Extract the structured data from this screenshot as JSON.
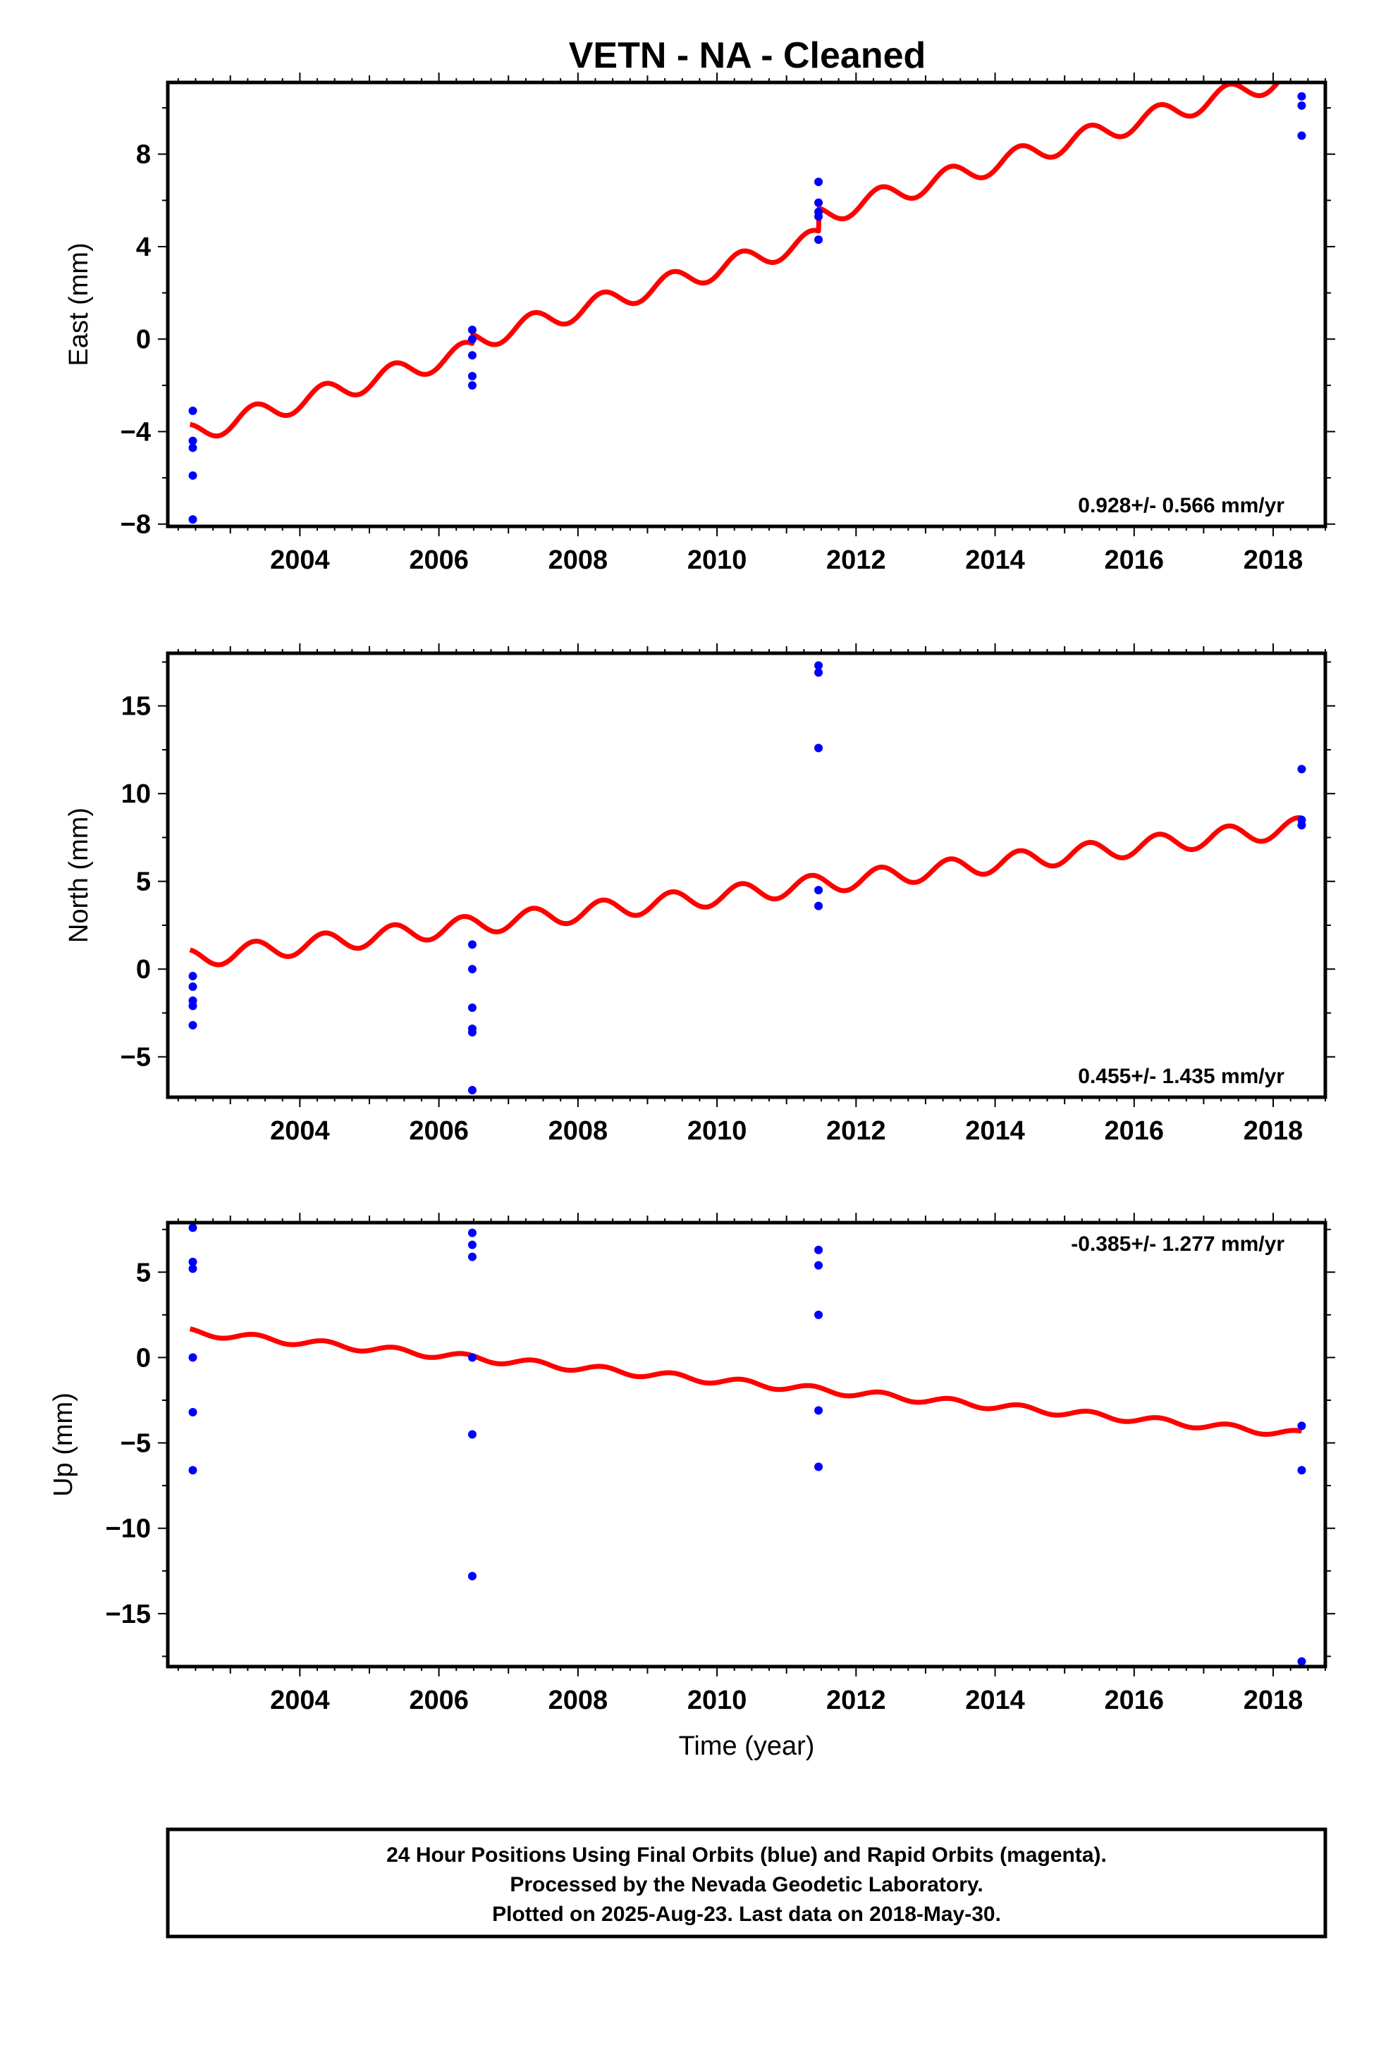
{
  "title": "VETN  - NA - Cleaned",
  "xlabel": "Time (year)",
  "footer_lines": [
    "24 Hour Positions Using Final Orbits (blue) and Rapid Orbits (magenta).",
    "Processed by the Nevada Geodetic Laboratory.",
    "Plotted on 2025-Aug-23. Last data on 2018-May-30."
  ],
  "colors": {
    "data_points": "#0000ff",
    "model_curve": "#ff0000",
    "frame": "#000000"
  },
  "chart_data": [
    {
      "type": "scatter",
      "ylabel": "East (mm)",
      "rate_label": "0.928+/- 0.566 mm/yr",
      "xlim": [
        2002.1,
        2018.75
      ],
      "ylim": [
        -8.1,
        11.1
      ],
      "xticks": [
        2004,
        2006,
        2008,
        2010,
        2012,
        2014,
        2016,
        2018
      ],
      "yticks": [
        -8,
        -4,
        0,
        4,
        8
      ],
      "points": [
        {
          "x": 2002.46,
          "y": -3.1
        },
        {
          "x": 2002.46,
          "y": -4.4
        },
        {
          "x": 2002.46,
          "y": -4.7
        },
        {
          "x": 2002.46,
          "y": -5.9
        },
        {
          "x": 2002.46,
          "y": -7.8
        },
        {
          "x": 2006.48,
          "y": 0.4
        },
        {
          "x": 2006.48,
          "y": 0.0
        },
        {
          "x": 2006.48,
          "y": -0.7
        },
        {
          "x": 2006.48,
          "y": -1.6
        },
        {
          "x": 2006.48,
          "y": -2.0
        },
        {
          "x": 2011.46,
          "y": 6.8
        },
        {
          "x": 2011.46,
          "y": 5.9
        },
        {
          "x": 2011.46,
          "y": 5.5
        },
        {
          "x": 2011.46,
          "y": 5.3
        },
        {
          "x": 2011.46,
          "y": 4.3
        },
        {
          "x": 2018.41,
          "y": 10.5
        },
        {
          "x": 2018.41,
          "y": 10.1
        },
        {
          "x": 2018.41,
          "y": 8.8
        }
      ],
      "model": {
        "x_start": 2002.42,
        "x_end": 2018.41,
        "y_start": -4.1,
        "y_end": 10.1,
        "seasonal_amplitude": 0.45,
        "annual_phase": 0.1,
        "offsets": [
          {
            "year": 2006.48,
            "value": 0.4
          },
          {
            "year": 2011.46,
            "value": 1.0
          }
        ]
      }
    },
    {
      "type": "scatter",
      "ylabel": "North (mm)",
      "rate_label": "0.455+/- 1.435 mm/yr",
      "xlim": [
        2002.1,
        2018.75
      ],
      "ylim": [
        -7.3,
        18.0
      ],
      "xticks": [
        2004,
        2006,
        2008,
        2010,
        2012,
        2014,
        2016,
        2018
      ],
      "yticks": [
        -5,
        0,
        5,
        10,
        15
      ],
      "points": [
        {
          "x": 2002.46,
          "y": -0.4
        },
        {
          "x": 2002.46,
          "y": -1.0
        },
        {
          "x": 2002.46,
          "y": -1.8
        },
        {
          "x": 2002.46,
          "y": -2.1
        },
        {
          "x": 2002.46,
          "y": -3.2
        },
        {
          "x": 2006.48,
          "y": 1.4
        },
        {
          "x": 2006.48,
          "y": 0.0
        },
        {
          "x": 2006.48,
          "y": -2.2
        },
        {
          "x": 2006.48,
          "y": -3.4
        },
        {
          "x": 2006.48,
          "y": -3.6
        },
        {
          "x": 2006.48,
          "y": -6.9
        },
        {
          "x": 2011.46,
          "y": 17.3
        },
        {
          "x": 2011.46,
          "y": 16.9
        },
        {
          "x": 2011.46,
          "y": 12.6
        },
        {
          "x": 2011.46,
          "y": 4.5
        },
        {
          "x": 2011.46,
          "y": 3.6
        },
        {
          "x": 2018.41,
          "y": 11.4
        },
        {
          "x": 2018.41,
          "y": 8.5
        },
        {
          "x": 2018.41,
          "y": 8.2
        }
      ],
      "model": {
        "x_start": 2002.42,
        "x_end": 2018.41,
        "y_start": 0.6,
        "y_end": 8.1,
        "seasonal_amplitude": 0.55,
        "annual_phase": 0.1,
        "offsets": []
      }
    },
    {
      "type": "scatter",
      "ylabel": "Up (mm)",
      "rate_label": "-0.385+/- 1.277 mm/yr",
      "xlim": [
        2002.1,
        2018.75
      ],
      "ylim": [
        -18.1,
        7.9
      ],
      "xticks": [
        2004,
        2006,
        2008,
        2010,
        2012,
        2014,
        2016,
        2018
      ],
      "yticks": [
        -15,
        -10,
        -5,
        0,
        5
      ],
      "points": [
        {
          "x": 2002.46,
          "y": 7.6
        },
        {
          "x": 2002.46,
          "y": 5.6
        },
        {
          "x": 2002.46,
          "y": 5.2
        },
        {
          "x": 2002.46,
          "y": 0.0
        },
        {
          "x": 2002.46,
          "y": -3.2
        },
        {
          "x": 2002.46,
          "y": -6.6
        },
        {
          "x": 2006.48,
          "y": 7.3
        },
        {
          "x": 2006.48,
          "y": 6.6
        },
        {
          "x": 2006.48,
          "y": 5.9
        },
        {
          "x": 2006.48,
          "y": 0.0
        },
        {
          "x": 2006.48,
          "y": -4.5
        },
        {
          "x": 2006.48,
          "y": -12.8
        },
        {
          "x": 2011.46,
          "y": 6.3
        },
        {
          "x": 2011.46,
          "y": 5.4
        },
        {
          "x": 2011.46,
          "y": 2.5
        },
        {
          "x": 2011.46,
          "y": -3.1
        },
        {
          "x": 2011.46,
          "y": -6.4
        },
        {
          "x": 2018.41,
          "y": -4.0
        },
        {
          "x": 2018.41,
          "y": -6.6
        },
        {
          "x": 2018.41,
          "y": -17.8
        }
      ],
      "model": {
        "x_start": 2002.42,
        "x_end": 2018.41,
        "y_start": 1.5,
        "y_end": -4.5,
        "seasonal_amplitude": 0.2,
        "annual_phase": 0.1,
        "offsets": []
      }
    }
  ]
}
